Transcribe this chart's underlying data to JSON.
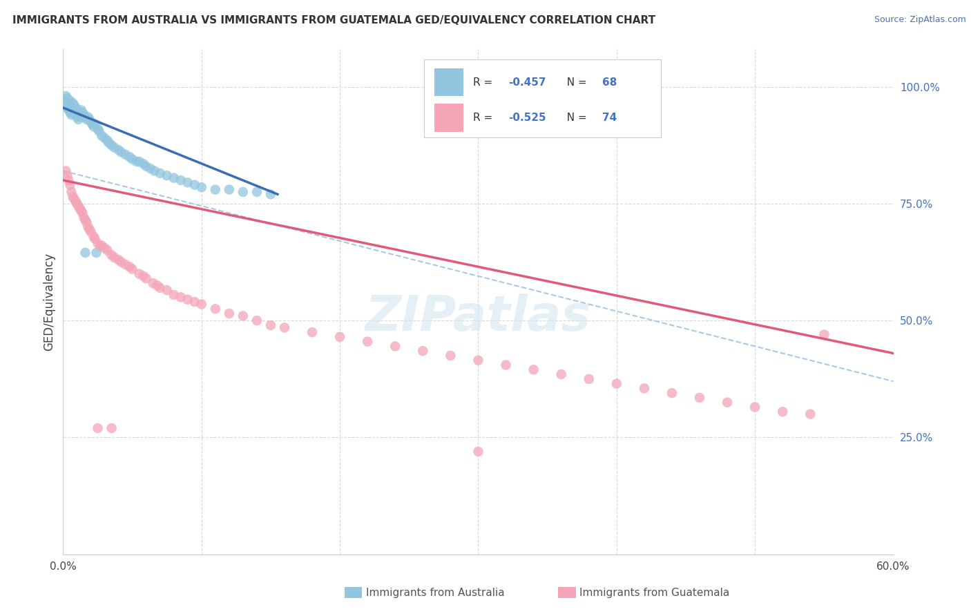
{
  "title": "IMMIGRANTS FROM AUSTRALIA VS IMMIGRANTS FROM GUATEMALA GED/EQUIVALENCY CORRELATION CHART",
  "source": "Source: ZipAtlas.com",
  "ylabel": "GED/Equivalency",
  "xlim": [
    0.0,
    0.6
  ],
  "ylim": [
    0.0,
    1.08
  ],
  "australia_R": -0.457,
  "australia_N": 68,
  "guatemala_R": -0.525,
  "guatemala_N": 74,
  "australia_color": "#92c5de",
  "guatemala_color": "#f4a5b8",
  "australia_line_color": "#3a6db5",
  "guatemala_line_color": "#e05a7a",
  "dashed_line_color": "#aac8e8",
  "background_color": "#ffffff",
  "grid_color": "#d8d8d8",
  "australia_scatter_x": [
    0.001,
    0.002,
    0.002,
    0.003,
    0.003,
    0.004,
    0.004,
    0.005,
    0.005,
    0.005,
    0.006,
    0.006,
    0.007,
    0.007,
    0.008,
    0.008,
    0.009,
    0.009,
    0.01,
    0.01,
    0.011,
    0.011,
    0.012,
    0.013,
    0.013,
    0.014,
    0.015,
    0.016,
    0.017,
    0.018,
    0.019,
    0.02,
    0.021,
    0.022,
    0.023,
    0.025,
    0.026,
    0.028,
    0.03,
    0.032,
    0.033,
    0.035,
    0.037,
    0.04,
    0.042,
    0.045,
    0.048,
    0.05,
    0.053,
    0.055,
    0.058,
    0.06,
    0.063,
    0.066,
    0.07,
    0.075,
    0.08,
    0.085,
    0.09,
    0.095,
    0.1,
    0.11,
    0.12,
    0.13,
    0.14,
    0.15,
    0.016,
    0.024
  ],
  "australia_scatter_y": [
    0.97,
    0.98,
    0.96,
    0.975,
    0.955,
    0.965,
    0.95,
    0.97,
    0.96,
    0.945,
    0.955,
    0.94,
    0.965,
    0.95,
    0.96,
    0.945,
    0.955,
    0.94,
    0.95,
    0.935,
    0.945,
    0.93,
    0.94,
    0.95,
    0.935,
    0.945,
    0.94,
    0.935,
    0.93,
    0.935,
    0.93,
    0.925,
    0.92,
    0.915,
    0.92,
    0.91,
    0.905,
    0.895,
    0.89,
    0.885,
    0.88,
    0.875,
    0.87,
    0.865,
    0.86,
    0.855,
    0.85,
    0.845,
    0.84,
    0.84,
    0.835,
    0.83,
    0.825,
    0.82,
    0.815,
    0.81,
    0.805,
    0.8,
    0.795,
    0.79,
    0.785,
    0.78,
    0.78,
    0.775,
    0.775,
    0.77,
    0.645,
    0.645
  ],
  "guatemala_scatter_x": [
    0.002,
    0.003,
    0.004,
    0.005,
    0.006,
    0.007,
    0.008,
    0.009,
    0.01,
    0.011,
    0.012,
    0.013,
    0.014,
    0.015,
    0.016,
    0.017,
    0.018,
    0.019,
    0.02,
    0.022,
    0.023,
    0.025,
    0.027,
    0.028,
    0.03,
    0.032,
    0.035,
    0.037,
    0.04,
    0.042,
    0.045,
    0.048,
    0.05,
    0.055,
    0.058,
    0.06,
    0.065,
    0.068,
    0.07,
    0.075,
    0.08,
    0.085,
    0.09,
    0.095,
    0.1,
    0.11,
    0.12,
    0.13,
    0.14,
    0.15,
    0.16,
    0.18,
    0.2,
    0.22,
    0.24,
    0.26,
    0.28,
    0.3,
    0.32,
    0.34,
    0.36,
    0.38,
    0.4,
    0.42,
    0.44,
    0.46,
    0.48,
    0.5,
    0.52,
    0.54,
    0.025,
    0.035,
    0.3,
    0.55
  ],
  "guatemala_scatter_y": [
    0.82,
    0.81,
    0.8,
    0.79,
    0.775,
    0.765,
    0.76,
    0.755,
    0.75,
    0.745,
    0.74,
    0.735,
    0.73,
    0.72,
    0.715,
    0.71,
    0.7,
    0.695,
    0.69,
    0.68,
    0.675,
    0.665,
    0.66,
    0.66,
    0.655,
    0.65,
    0.64,
    0.635,
    0.63,
    0.625,
    0.62,
    0.615,
    0.61,
    0.6,
    0.595,
    0.59,
    0.58,
    0.575,
    0.57,
    0.565,
    0.555,
    0.55,
    0.545,
    0.54,
    0.535,
    0.525,
    0.515,
    0.51,
    0.5,
    0.49,
    0.485,
    0.475,
    0.465,
    0.455,
    0.445,
    0.435,
    0.425,
    0.415,
    0.405,
    0.395,
    0.385,
    0.375,
    0.365,
    0.355,
    0.345,
    0.335,
    0.325,
    0.315,
    0.305,
    0.3,
    0.27,
    0.27,
    0.22,
    0.47
  ],
  "australia_trend_x": [
    0.0,
    0.155
  ],
  "australia_trend_y": [
    0.955,
    0.77
  ],
  "guatemala_trend_x": [
    0.0,
    0.6
  ],
  "guatemala_trend_y": [
    0.8,
    0.43
  ],
  "dashed_trend_x": [
    0.0,
    0.6
  ],
  "dashed_trend_y": [
    0.82,
    0.37
  ],
  "watermark": "ZIPatlas",
  "legend_label_color": "#3a6db5",
  "legend_text_color": "#222222"
}
